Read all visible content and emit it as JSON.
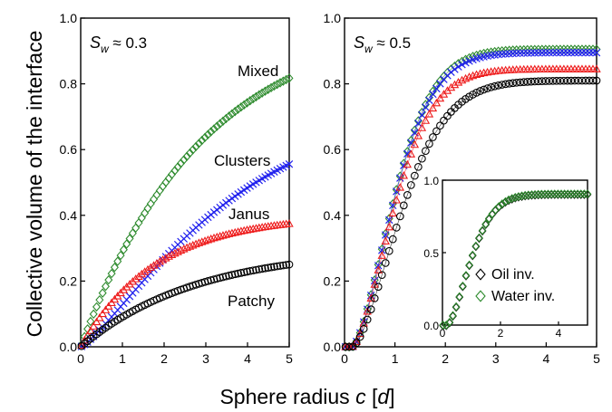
{
  "figure": {
    "ylabel": "Collective volume of the interface",
    "xlabel_prefix": "Sphere radius ",
    "xlabel_var": "c",
    "xlabel_suffix_open": " [",
    "xlabel_unit": "d",
    "xlabel_suffix_close": "]"
  },
  "chart_data": [
    {
      "type": "scatter",
      "panel": "left",
      "annotation": {
        "symbol": "S",
        "subscript": "w",
        "text": " ≈ 0.3"
      },
      "xlim": [
        0,
        5
      ],
      "ylim": [
        0,
        1.0
      ],
      "xticks": [
        0,
        1,
        2,
        3,
        4,
        5
      ],
      "yticks": [
        0.0,
        0.2,
        0.4,
        0.6,
        0.8,
        1.0
      ],
      "ytick_labels": [
        "0.0",
        "0.2",
        "0.4",
        "0.6",
        "0.8",
        "1.0"
      ],
      "grid": false,
      "series": [
        {
          "name": "Mixed",
          "marker": "diamond",
          "color": "#2e8b2e",
          "ymax": 1.0,
          "rate": 0.34,
          "power": 1.0
        },
        {
          "name": "Clusters",
          "marker": "cross",
          "color": "#2222ee",
          "ymax": 0.725,
          "rate": 0.27,
          "power": 1.25
        },
        {
          "name": "Janus",
          "marker": "triangle",
          "color": "#ee1c1c",
          "ymax": 0.4,
          "rate": 0.55,
          "power": 1.0
        },
        {
          "name": "Patchy",
          "marker": "circle",
          "color": "#000000",
          "ymax": 0.3,
          "rate": 0.36,
          "power": 1.0
        }
      ]
    },
    {
      "type": "scatter",
      "panel": "right",
      "annotation": {
        "symbol": "S",
        "subscript": "w",
        "text": " ≈ 0.5"
      },
      "xlim": [
        0,
        5
      ],
      "ylim": [
        0,
        1.0
      ],
      "xticks": [
        0,
        1,
        2,
        3,
        4,
        5
      ],
      "yticks": [
        0.0,
        0.2,
        0.4,
        0.6,
        0.8,
        1.0
      ],
      "ytick_labels": [
        "0.0",
        "0.2",
        "0.4",
        "0.6",
        "0.8",
        "1.0"
      ],
      "grid": false,
      "series": [
        {
          "marker": "diamond",
          "color": "#2e8b2e",
          "x0": 0.15,
          "rate": 0.95,
          "power": 1.6,
          "ymax": 0.905
        },
        {
          "marker": "cross",
          "color": "#2222ee",
          "x0": 0.15,
          "rate": 0.95,
          "power": 1.6,
          "ymax": 0.895
        },
        {
          "marker": "triangle",
          "color": "#ee1c1c",
          "x0": 0.15,
          "rate": 0.95,
          "power": 1.6,
          "ymax": 0.845
        },
        {
          "marker": "circle",
          "color": "#000000",
          "x0": 0.15,
          "rate": 0.82,
          "power": 1.6,
          "ymax": 0.81
        }
      ]
    },
    {
      "type": "scatter",
      "panel": "inset",
      "xlim": [
        0,
        5
      ],
      "ylim": [
        0,
        1.0
      ],
      "xticks": [
        0,
        2,
        4
      ],
      "yticks": [
        0.0,
        0.5,
        1.0
      ],
      "ytick_labels": [
        "0.0",
        "0.5",
        "1.0"
      ],
      "grid": false,
      "legend_position": "bottom-right",
      "series": [
        {
          "name": "Oil inv.",
          "marker": "diamond-open",
          "color": "#000000",
          "x0": 0.15,
          "rate": 0.95,
          "power": 1.6,
          "ymax": 0.905
        },
        {
          "name": "Water inv.",
          "marker": "diamond",
          "color": "#2e8b2e",
          "x0": 0.15,
          "rate": 0.95,
          "power": 1.6,
          "ymax": 0.905
        }
      ]
    }
  ]
}
